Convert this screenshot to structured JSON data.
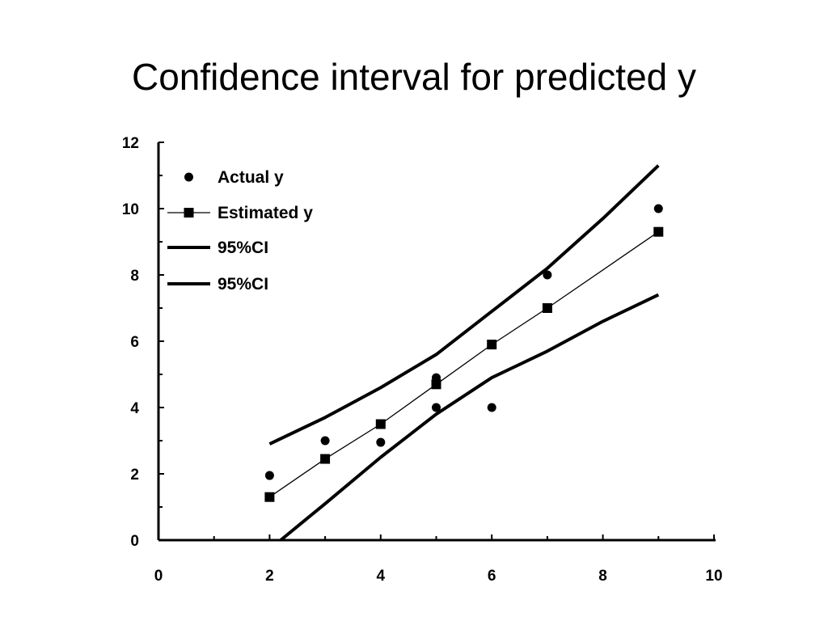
{
  "title": "Confidence interval for predicted y",
  "chart_data": {
    "type": "line",
    "xlim": [
      0,
      10
    ],
    "ylim": [
      0,
      12
    ],
    "x_ticks": [
      0,
      2,
      4,
      6,
      8,
      10
    ],
    "y_ticks": [
      0,
      2,
      4,
      6,
      8,
      10,
      12
    ],
    "legend_position": "top-left",
    "series": [
      {
        "name": "Actual y",
        "kind": "markers",
        "marker": "circle",
        "color": "#000000",
        "x": [
          2,
          3,
          4,
          5,
          5,
          5,
          6,
          7,
          9
        ],
        "y": [
          1.95,
          3,
          2.95,
          4.9,
          4.8,
          4.0,
          4.0,
          8.0,
          10.0
        ]
      },
      {
        "name": "Estimated y",
        "kind": "line-markers",
        "marker": "square",
        "color": "#000000",
        "x": [
          2,
          3,
          4,
          5,
          6,
          7,
          9
        ],
        "y": [
          1.3,
          2.45,
          3.5,
          4.7,
          5.9,
          7.0,
          9.3
        ]
      },
      {
        "name": "95%CI",
        "kind": "line",
        "color": "#000000",
        "x": [
          2,
          3,
          4,
          5,
          6,
          7,
          8,
          9
        ],
        "y": [
          2.9,
          3.7,
          4.6,
          5.6,
          6.9,
          8.2,
          9.7,
          11.3
        ]
      },
      {
        "name": "95%CI",
        "kind": "line",
        "color": "#000000",
        "x": [
          2.2,
          3,
          4,
          5,
          6,
          7,
          8,
          9
        ],
        "y": [
          0,
          1.1,
          2.5,
          3.8,
          4.9,
          5.7,
          6.6,
          7.4
        ]
      }
    ]
  }
}
